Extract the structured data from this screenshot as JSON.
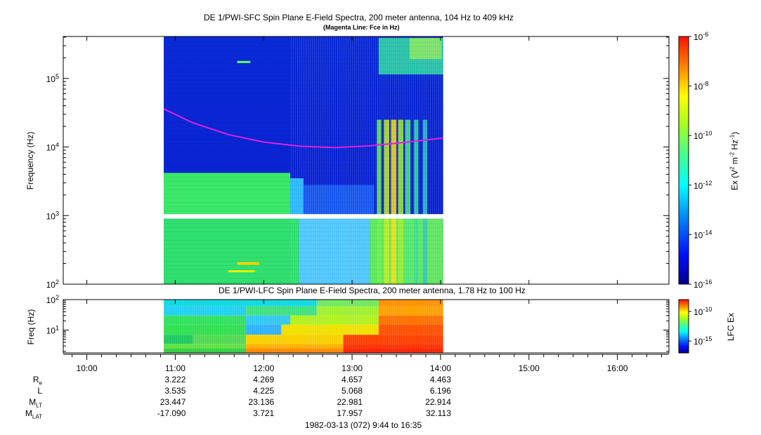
{
  "chart_data": [
    {
      "type": "heatmap",
      "title": "DE 1/PWI-SFC  Spin Plane E-Field Spectra, 200 meter antenna, 104 Hz to 409 kHz",
      "subtitle": "(Magenta Line: Fce in Hz)",
      "ylabel": "Frequency (Hz)",
      "yscale": "log",
      "ylim": [
        100,
        409000
      ],
      "y_ticks": [
        {
          "value": 100,
          "base": "10",
          "exp": "2"
        },
        {
          "value": 1000,
          "base": "10",
          "exp": "3"
        },
        {
          "value": 10000,
          "base": "10",
          "exp": "4"
        },
        {
          "value": 100000,
          "base": "10",
          "exp": "5"
        }
      ],
      "colorbar": {
        "label_prefix": "Ex (V",
        "label_sup1": "2",
        "label_mid": " m",
        "label_sup2": "-2",
        "label_mid2": " Hz",
        "label_sup3": "-1",
        "label_suffix": ")",
        "scale": "log",
        "range": [
          1e-16,
          1e-06
        ],
        "ticks": [
          {
            "value": 1e-06,
            "base": "10",
            "exp": "-6"
          },
          {
            "value": 1e-08,
            "base": "10",
            "exp": "-8"
          },
          {
            "value": 1e-10,
            "base": "10",
            "exp": "-10"
          },
          {
            "value": 1e-12,
            "base": "10",
            "exp": "-12"
          },
          {
            "value": 1e-14,
            "base": "10",
            "exp": "-14"
          },
          {
            "value": 1e-16,
            "base": "10",
            "exp": "-16"
          }
        ]
      },
      "data_start_hour": 10.87,
      "data_end_hour": 14.03,
      "data_gap_hz": [
        900,
        1050
      ],
      "fce_line_color": "#e020e0",
      "fce_line": {
        "hours": [
          10.87,
          11.2,
          11.6,
          12.0,
          12.4,
          12.8,
          13.2,
          13.6,
          14.03
        ],
        "hz": [
          36000,
          22500,
          15200,
          11800,
          10300,
          9800,
          10400,
          11700,
          13500
        ]
      }
    },
    {
      "type": "heatmap",
      "title": "DE 1/PWI-LFC  Spin Plane E-Field Spectra, 200 meter antenna, 1.78 Hz to 100 Hz",
      "ylabel": "Freq (Hz)",
      "yscale": "log",
      "ylim": [
        1.78,
        100
      ],
      "y_ticks": [
        {
          "value": 10,
          "base": "10",
          "exp": "1"
        },
        {
          "value": 100,
          "base": "10",
          "exp": "2"
        }
      ],
      "colorbar": {
        "label": "LFC Ex",
        "scale": "log",
        "range": [
          1e-17,
          1e-08
        ],
        "ticks": [
          {
            "value": 1e-10,
            "base": "10",
            "exp": "-10"
          },
          {
            "value": 1e-15,
            "base": "10",
            "exp": "-15"
          }
        ]
      },
      "data_start_hour": 10.87,
      "data_end_hour": 14.03
    }
  ],
  "x_axis": {
    "range_hours": [
      9.7333,
      16.5833
    ],
    "ticks": [
      {
        "hour": 10,
        "label": "10:00"
      },
      {
        "hour": 11,
        "label": "11:00"
      },
      {
        "hour": 12,
        "label": "12:00"
      },
      {
        "hour": 13,
        "label": "13:00"
      },
      {
        "hour": 14,
        "label": "14:00"
      },
      {
        "hour": 15,
        "label": "15:00"
      },
      {
        "hour": 16,
        "label": "16:00"
      }
    ]
  },
  "ephemeris": {
    "rows": [
      {
        "label": "R",
        "sub": "e",
        "values": [
          "3.222",
          "4.269",
          "4.657",
          "4.463"
        ]
      },
      {
        "label": "L",
        "sub": "",
        "values": [
          "3.535",
          "4.225",
          "5.068",
          "6.196"
        ]
      },
      {
        "label": "M",
        "sub": "LT",
        "values": [
          "23.447",
          "23.136",
          "22.981",
          "22.914"
        ]
      },
      {
        "label": "M",
        "sub": "LAT",
        "values": [
          "-17.090",
          "3.721",
          "17.957",
          "32.113"
        ]
      }
    ],
    "at_hours": [
      11,
      12,
      13,
      14
    ]
  },
  "footer": "1982-03-13 (072) 9:44 to 16:35"
}
